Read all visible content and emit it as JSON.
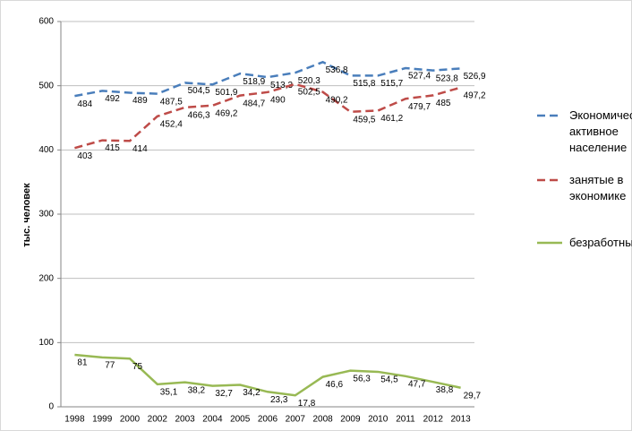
{
  "chart_data": {
    "type": "line",
    "y_label": "тыс. человек",
    "categories": [
      "1998",
      "1999",
      "2000",
      "2002",
      "2003",
      "2004",
      "2005",
      "2006",
      "2007",
      "2008",
      "2009",
      "2010",
      "2011",
      "2012",
      "2013"
    ],
    "ylim": [
      0,
      600
    ],
    "yticks": [
      0,
      100,
      200,
      300,
      400,
      500,
      600
    ],
    "grid": true,
    "legend": "right",
    "series": [
      {
        "name": "Экономически активное население",
        "color": "#4a7ebb",
        "dash": true,
        "values": [
          484,
          492,
          489,
          487.5,
          504.5,
          501.9,
          518.9,
          513.3,
          520.3,
          536.8,
          515.8,
          515.7,
          527.4,
          523.8,
          526.9
        ],
        "value_labels": [
          "484",
          "492",
          "489",
          "487,5",
          "504,5",
          "501,9",
          "518,9",
          "513,3",
          "520,3",
          "536,8",
          "515,8",
          "515,7",
          "527,4",
          "523,8",
          "526,9"
        ]
      },
      {
        "name": "занятые в экономике",
        "color": "#be4b48",
        "dash": true,
        "values": [
          403,
          415,
          414,
          452.4,
          466.3,
          469.2,
          484.7,
          490,
          502.5,
          490.2,
          459.5,
          461.2,
          479.7,
          485,
          497.2
        ],
        "value_labels": [
          "403",
          "415",
          "414",
          "452,4",
          "466,3",
          "469,2",
          "484,7",
          "490",
          "502,5",
          "490,2",
          "459,5",
          "461,2",
          "479,7",
          "485",
          "497,2"
        ]
      },
      {
        "name": "безработные",
        "color": "#98b954",
        "dash": false,
        "values": [
          81,
          77,
          75,
          35.1,
          38.2,
          32.7,
          34.2,
          23.3,
          17.8,
          46.6,
          56.3,
          54.5,
          47.7,
          38.8,
          29.7
        ],
        "value_labels": [
          "81",
          "77",
          "75",
          "35,1",
          "38,2",
          "32,7",
          "34,2",
          "23,3",
          "17,8",
          "46,6",
          "56,3",
          "54,5",
          "47,7",
          "38,8",
          "29,7"
        ]
      }
    ]
  }
}
